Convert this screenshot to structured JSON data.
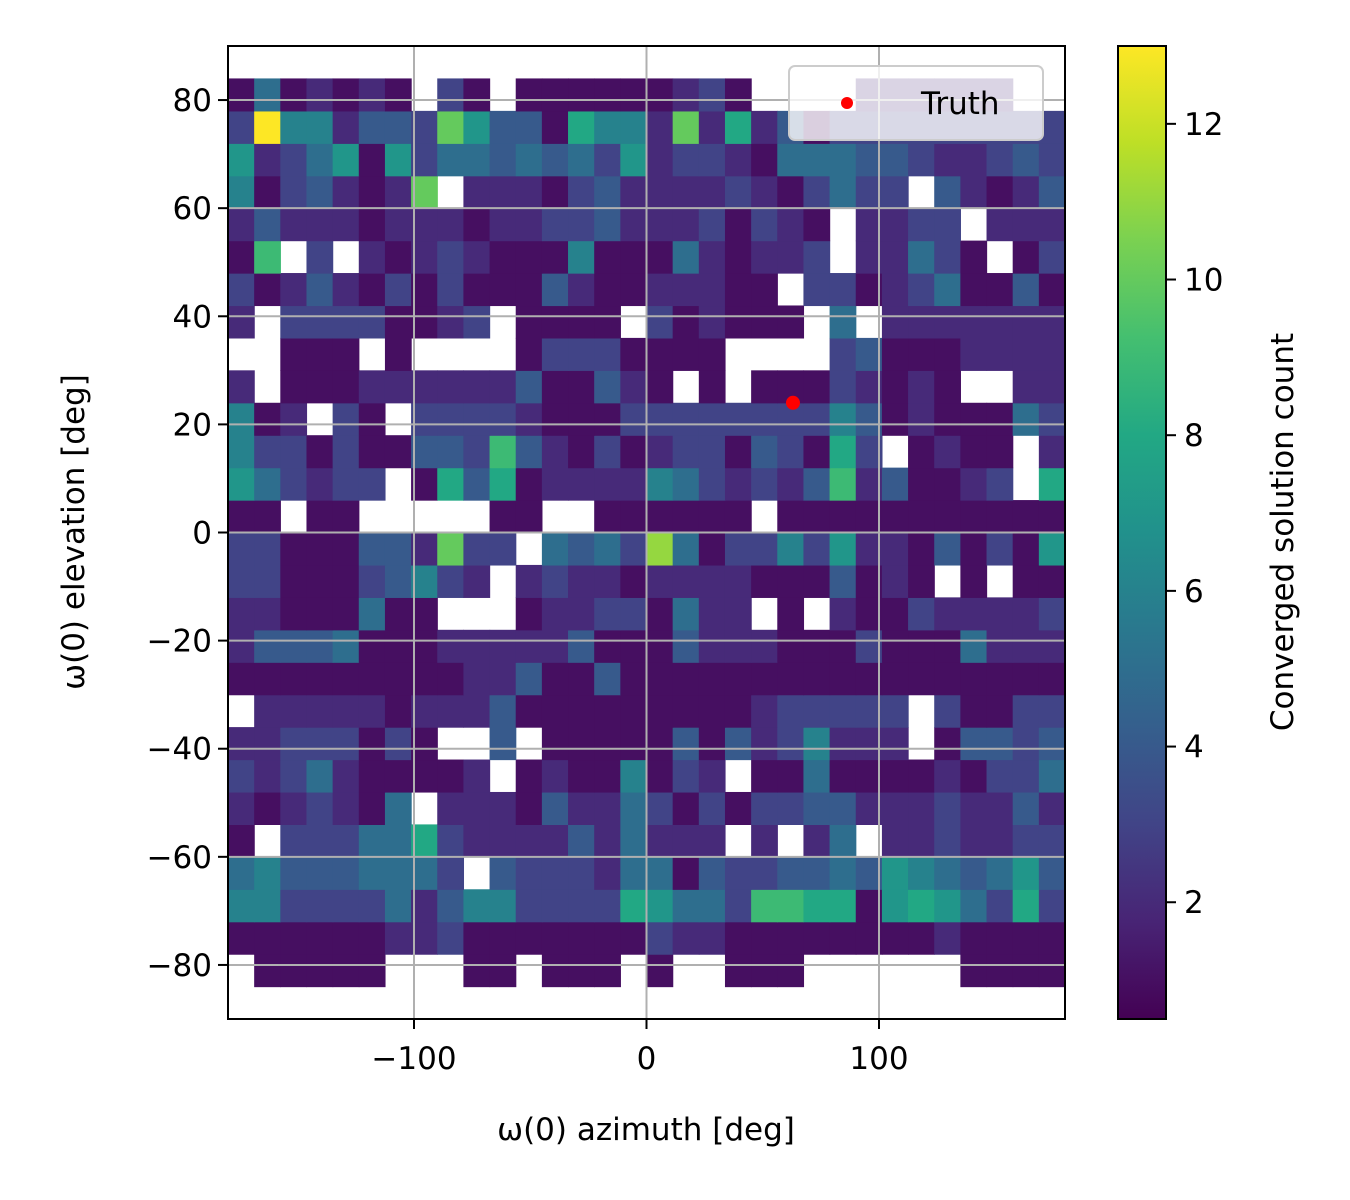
{
  "chart_data": {
    "type": "heatmap",
    "title": "",
    "xlabel": "ω(0) azimuth [deg]",
    "ylabel": "ω(0) elevation [deg]",
    "colorbar_label": "Converged solution count",
    "xlim": [
      -180,
      180
    ],
    "ylim": [
      -90,
      90
    ],
    "x_ticks": [
      -100,
      0,
      100
    ],
    "x_tick_labels": [
      "−100",
      "0",
      "100"
    ],
    "y_ticks": [
      -80,
      -60,
      -40,
      -20,
      0,
      20,
      40,
      60,
      80
    ],
    "y_tick_labels": [
      "−80",
      "−60",
      "−40",
      "−20",
      "0",
      "20",
      "40",
      "60",
      "80"
    ],
    "colorbar_ticks": [
      2,
      4,
      6,
      8,
      10,
      12
    ],
    "colorbar_range": [
      0.5,
      13
    ],
    "colormap": "viridis",
    "grid": true,
    "bins": {
      "x_start": -180,
      "x_step": 11.25,
      "nx": 32,
      "y_start": -84,
      "y_step": 6,
      "ny": 28
    },
    "rows_bottom_to_top": [
      [
        0,
        1,
        1,
        1,
        1,
        1,
        0,
        0,
        0,
        1,
        1,
        0,
        1,
        1,
        1,
        0,
        1,
        0,
        0,
        1,
        1,
        1,
        0,
        0,
        0,
        0,
        0,
        0,
        1,
        1,
        1,
        1
      ],
      [
        1,
        1,
        1,
        1,
        1,
        1,
        2,
        2,
        3,
        1,
        1,
        1,
        1,
        1,
        1,
        1,
        3,
        2,
        2,
        1,
        1,
        1,
        1,
        1,
        1,
        1,
        1,
        2,
        1,
        1,
        1,
        1
      ],
      [
        6,
        6,
        3,
        3,
        3,
        3,
        5,
        2,
        4,
        6,
        6,
        3,
        3,
        3,
        3,
        8,
        7,
        5,
        5,
        3,
        9,
        9,
        8,
        8,
        1,
        7,
        8,
        7,
        5,
        3,
        8,
        3
      ],
      [
        5,
        6,
        4,
        4,
        4,
        5,
        5,
        5,
        3,
        0,
        4,
        3,
        3,
        3,
        2,
        5,
        5,
        1,
        4,
        3,
        3,
        4,
        4,
        5,
        4,
        7,
        6,
        5,
        4,
        5,
        7,
        4
      ],
      [
        1,
        0,
        3,
        3,
        3,
        5,
        5,
        8,
        3,
        2,
        2,
        2,
        2,
        4,
        2,
        5,
        2,
        2,
        2,
        0,
        2,
        0,
        2,
        5,
        0,
        2,
        2,
        3,
        2,
        2,
        3,
        3
      ],
      [
        2,
        1,
        2,
        3,
        2,
        1,
        5,
        0,
        2,
        2,
        2,
        1,
        4,
        2,
        2,
        5,
        3,
        1,
        3,
        1,
        3,
        3,
        4,
        4,
        2,
        2,
        2,
        3,
        2,
        2,
        4,
        2
      ],
      [
        3,
        2,
        3,
        5,
        2,
        1,
        1,
        1,
        1,
        2,
        0,
        1,
        2,
        1,
        1,
        6,
        1,
        3,
        2,
        0,
        1,
        1,
        5,
        1,
        1,
        1,
        1,
        2,
        1,
        3,
        3,
        5
      ],
      [
        2,
        2,
        3,
        3,
        3,
        1,
        3,
        1,
        0,
        0,
        4,
        0,
        1,
        1,
        1,
        1,
        1,
        4,
        1,
        4,
        2,
        3,
        6,
        2,
        2,
        2,
        0,
        1,
        4,
        4,
        3,
        4
      ],
      [
        0,
        2,
        2,
        2,
        2,
        2,
        1,
        2,
        2,
        2,
        4,
        1,
        1,
        1,
        1,
        1,
        1,
        1,
        1,
        1,
        2,
        3,
        3,
        3,
        3,
        3,
        0,
        3,
        1,
        1,
        3,
        3
      ],
      [
        1,
        1,
        1,
        1,
        1,
        1,
        1,
        1,
        1,
        2,
        2,
        4,
        1,
        1,
        4,
        1,
        1,
        1,
        1,
        1,
        1,
        1,
        1,
        1,
        1,
        1,
        1,
        1,
        1,
        1,
        1,
        1
      ],
      [
        2,
        4,
        4,
        4,
        5,
        1,
        1,
        1,
        2,
        2,
        2,
        2,
        2,
        4,
        1,
        1,
        1,
        4,
        2,
        2,
        2,
        1,
        1,
        1,
        3,
        1,
        1,
        1,
        5,
        2,
        2,
        2
      ],
      [
        2,
        2,
        1,
        1,
        1,
        5,
        1,
        1,
        0,
        0,
        0,
        1,
        2,
        2,
        3,
        3,
        1,
        5,
        2,
        2,
        0,
        1,
        0,
        2,
        1,
        1,
        3,
        2,
        2,
        2,
        2,
        3
      ],
      [
        3,
        3,
        1,
        1,
        1,
        3,
        4,
        6,
        3,
        2,
        0,
        2,
        3,
        2,
        2,
        1,
        2,
        2,
        2,
        2,
        1,
        1,
        1,
        4,
        1,
        2,
        1,
        0,
        1,
        0,
        1,
        1
      ],
      [
        3,
        3,
        1,
        1,
        1,
        4,
        4,
        2,
        10,
        3,
        3,
        0,
        5,
        4,
        5,
        3,
        11,
        5,
        1,
        3,
        3,
        6,
        3,
        7,
        2,
        2,
        1,
        4,
        1,
        3,
        1,
        7
      ],
      [
        1,
        1,
        0,
        1,
        1,
        0,
        0,
        0,
        0,
        0,
        1,
        1,
        0,
        0,
        1,
        1,
        1,
        1,
        1,
        1,
        0,
        1,
        1,
        1,
        1,
        1,
        1,
        1,
        1,
        1,
        1,
        1
      ],
      [
        7,
        5,
        3,
        2,
        3,
        3,
        0,
        1,
        8,
        4,
        8,
        1,
        2,
        2,
        2,
        2,
        6,
        5,
        3,
        2,
        3,
        2,
        4,
        9,
        2,
        4,
        1,
        1,
        2,
        3,
        0,
        8
      ],
      [
        6,
        3,
        3,
        1,
        3,
        1,
        1,
        4,
        4,
        3,
        9,
        4,
        2,
        1,
        3,
        1,
        2,
        3,
        3,
        1,
        4,
        3,
        1,
        8,
        3,
        0,
        1,
        2,
        1,
        1,
        0,
        2
      ],
      [
        6,
        1,
        2,
        0,
        3,
        1,
        0,
        3,
        3,
        3,
        3,
        2,
        1,
        1,
        1,
        3,
        3,
        3,
        3,
        3,
        3,
        3,
        3,
        6,
        4,
        1,
        2,
        1,
        1,
        1,
        5,
        3
      ],
      [
        2,
        0,
        1,
        1,
        1,
        2,
        2,
        2,
        2,
        2,
        2,
        4,
        1,
        1,
        4,
        2,
        1,
        0,
        1,
        0,
        1,
        1,
        1,
        3,
        2,
        1,
        2,
        1,
        0,
        0,
        2,
        2
      ],
      [
        0,
        0,
        1,
        1,
        1,
        0,
        1,
        0,
        0,
        0,
        0,
        1,
        3,
        3,
        3,
        1,
        1,
        1,
        1,
        0,
        0,
        0,
        0,
        3,
        4,
        1,
        1,
        1,
        2,
        2,
        2,
        2
      ],
      [
        2,
        0,
        3,
        3,
        3,
        3,
        1,
        1,
        2,
        3,
        0,
        1,
        1,
        1,
        1,
        0,
        3,
        1,
        2,
        1,
        1,
        1,
        0,
        5,
        0,
        2,
        2,
        2,
        2,
        2,
        2,
        2
      ],
      [
        3,
        1,
        2,
        4,
        2,
        1,
        3,
        1,
        3,
        1,
        1,
        1,
        4,
        2,
        1,
        1,
        2,
        2,
        2,
        1,
        1,
        0,
        3,
        3,
        1,
        2,
        3,
        5,
        1,
        1,
        4,
        1
      ],
      [
        1,
        9,
        0,
        3,
        0,
        2,
        1,
        2,
        3,
        2,
        1,
        1,
        1,
        6,
        1,
        1,
        1,
        5,
        2,
        1,
        2,
        2,
        3,
        0,
        2,
        2,
        5,
        3,
        1,
        0,
        1,
        3
      ],
      [
        2,
        4,
        2,
        2,
        2,
        1,
        2,
        2,
        2,
        1,
        2,
        2,
        3,
        3,
        4,
        2,
        2,
        2,
        3,
        1,
        3,
        2,
        1,
        0,
        2,
        2,
        3,
        3,
        0,
        2,
        2,
        2
      ],
      [
        6,
        1,
        3,
        4,
        2,
        1,
        2,
        10,
        0,
        2,
        2,
        2,
        1,
        3,
        4,
        2,
        2,
        2,
        2,
        3,
        2,
        1,
        3,
        5,
        3,
        3,
        0,
        4,
        2,
        1,
        2,
        4
      ],
      [
        7,
        2,
        3,
        5,
        7,
        1,
        7,
        3,
        5,
        5,
        4,
        5,
        4,
        5,
        3,
        7,
        2,
        3,
        3,
        2,
        1,
        5,
        5,
        5,
        4,
        4,
        3,
        2,
        2,
        3,
        4,
        3
      ],
      [
        3,
        13,
        6,
        6,
        2,
        4,
        4,
        3,
        10,
        7,
        4,
        4,
        1,
        8,
        6,
        6,
        2,
        10,
        2,
        8,
        2,
        4,
        1,
        3,
        3,
        3,
        3,
        3,
        3,
        3,
        3,
        3
      ],
      [
        1,
        5,
        1,
        2,
        1,
        2,
        1,
        0,
        3,
        1,
        0,
        1,
        1,
        1,
        1,
        1,
        1,
        2,
        3,
        1,
        0,
        0,
        0,
        0,
        2,
        2,
        2,
        2,
        2,
        2,
        0,
        0
      ]
    ],
    "series": [
      {
        "name": "Truth",
        "marker": "point",
        "color": "#ff0000",
        "x": 63,
        "y": 24
      }
    ],
    "legend_position": "upper right"
  }
}
